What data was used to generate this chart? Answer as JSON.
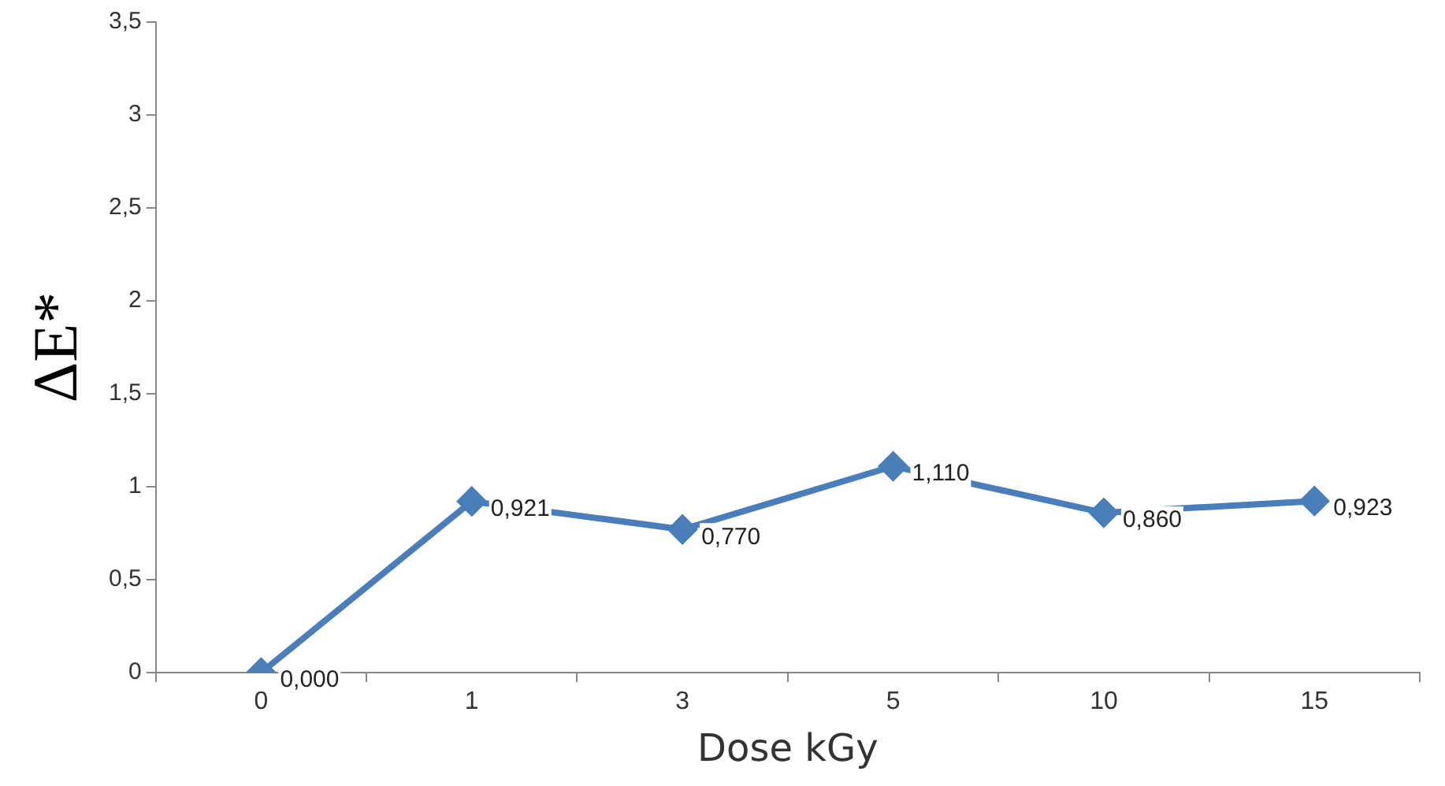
{
  "chart_data": {
    "type": "line",
    "xlabel": "Dose kGy",
    "ylabel": "ΔE*",
    "categories": [
      "0",
      "1",
      "3",
      "5",
      "10",
      "15"
    ],
    "series": [
      {
        "color": "#4a7ebb",
        "values": [
          0,
          0.921,
          0.77,
          1.11,
          0.86,
          0.923
        ],
        "value_labels": [
          "0,000",
          "0,921",
          "0,770",
          "1,110",
          "0,860",
          "0,923"
        ]
      }
    ],
    "ylim": [
      0,
      3.5
    ],
    "yticks": [
      0,
      {
        "value": 0.5,
        "label": "0,5"
      },
      1,
      {
        "value": 1.5,
        "label": "1,5"
      },
      2,
      {
        "value": 2.5,
        "label": "2,5"
      },
      3,
      {
        "value": 3.5,
        "label": "3,5"
      }
    ],
    "grid": false,
    "legend": false,
    "marker": "diamond",
    "line_style": "solid"
  }
}
